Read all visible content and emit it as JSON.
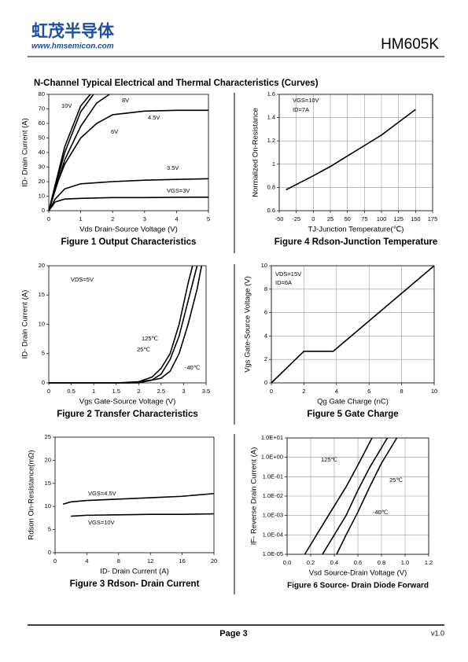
{
  "header": {
    "logo": "虹茂半导体",
    "website": "www.hmsemicon.com",
    "part_number": "HM605K"
  },
  "section_title": "N-Channel Typical Electrical and Thermal Characteristics (Curves)",
  "chart_data": [
    {
      "type": "line",
      "title": "Figure 1 Output Characteristics",
      "xlabel": "Vds Drain-Source Voltage (V)",
      "ylabel": "ID- Drain Current (A)",
      "xlim": [
        0,
        5
      ],
      "ylim": [
        0,
        80
      ],
      "xticks": [
        0,
        1,
        2,
        3,
        4,
        5
      ],
      "yticks": [
        0,
        10,
        20,
        30,
        40,
        50,
        60,
        70,
        80
      ],
      "grid": false,
      "series": [
        {
          "name": "10V",
          "color": "#000000",
          "x": [
            0,
            0.5,
            1,
            1.3
          ],
          "values": [
            0,
            44,
            72,
            80
          ]
        },
        {
          "name": "8V",
          "color": "#000000",
          "x": [
            0,
            0.5,
            1,
            1.4
          ],
          "values": [
            0,
            40,
            68,
            80
          ]
        },
        {
          "name": "6V",
          "color": "#000000",
          "x": [
            0,
            0.5,
            1,
            1.5,
            1.9
          ],
          "values": [
            0,
            35,
            58,
            74,
            80
          ]
        },
        {
          "name": "4.5V",
          "color": "#000000",
          "x": [
            0,
            0.25,
            0.5,
            1,
            1.5,
            2,
            3,
            4,
            5
          ],
          "values": [
            0,
            18,
            32,
            50,
            60,
            66,
            68.5,
            69,
            69
          ]
        },
        {
          "name": "3.5V",
          "color": "#000000",
          "x": [
            0,
            0.2,
            0.5,
            1,
            2,
            3,
            4,
            5
          ],
          "values": [
            0,
            8,
            15,
            18.5,
            20,
            21,
            21.5,
            22
          ]
        },
        {
          "name": "VGS=3V",
          "color": "#000000",
          "x": [
            0,
            0.2,
            0.5,
            1,
            2,
            3,
            4,
            5
          ],
          "values": [
            0,
            6,
            8,
            8.5,
            9,
            9,
            9.2,
            9.3
          ]
        }
      ]
    },
    {
      "type": "line",
      "title": "Figure 4 Rdson-Junction Temperature",
      "xlabel": "TJ-Junction Temperature(℃)",
      "ylabel": "Normalized On-Resistance",
      "xlim": [
        -50,
        175
      ],
      "ylim": [
        0.6,
        1.6
      ],
      "xticks": [
        -50,
        -25,
        0,
        25,
        50,
        75,
        100,
        125,
        150,
        175
      ],
      "yticks": [
        0.6,
        0.8,
        1,
        1.2,
        1.4,
        1.6
      ],
      "grid": true,
      "annotations": [
        "VGS=10V",
        "ID=7A"
      ],
      "series": [
        {
          "color": "#000000",
          "x": [
            -40,
            0,
            25,
            50,
            75,
            100,
            125,
            150
          ],
          "values": [
            0.78,
            0.9,
            0.98,
            1.07,
            1.16,
            1.25,
            1.36,
            1.47
          ]
        }
      ]
    },
    {
      "type": "line",
      "title": "Figure 2 Transfer Characteristics",
      "xlabel": "Vgs Gate-Source Voltage (V)",
      "ylabel": "ID- Drain Current (A)",
      "xlim": [
        0,
        3.5
      ],
      "ylim": [
        0,
        20
      ],
      "xticks": [
        0,
        0.5,
        1,
        1.5,
        2,
        2.5,
        3,
        3.5
      ],
      "yticks": [
        0,
        5,
        10,
        15,
        20
      ],
      "grid": false,
      "annotations": [
        "VDS=5V"
      ],
      "series": [
        {
          "name": "125℃",
          "color": "#000000",
          "x": [
            0,
            1.5,
            2,
            2.3,
            2.5,
            2.7,
            2.9,
            3.1,
            3.2
          ],
          "values": [
            0,
            0,
            0.2,
            1,
            2.5,
            5,
            10,
            17,
            20
          ]
        },
        {
          "name": "25℃",
          "color": "#000000",
          "x": [
            0,
            1.8,
            2.3,
            2.5,
            2.7,
            2.9,
            3.1,
            3.3
          ],
          "values": [
            0,
            0,
            0.5,
            1.5,
            4,
            8,
            14,
            20
          ]
        },
        {
          "name": "-40℃",
          "color": "#000000",
          "x": [
            0,
            2,
            2.5,
            2.7,
            2.9,
            3.1,
            3.3,
            3.4
          ],
          "values": [
            0,
            0,
            0.8,
            2,
            5,
            10,
            16,
            20
          ]
        }
      ]
    },
    {
      "type": "line",
      "title": "Figure 5 Gate Charge",
      "xlabel": "Qg Gate Charge (nC)",
      "ylabel": "Vgs Gate-Source Voltage (V)",
      "xlim": [
        0,
        10
      ],
      "ylim": [
        0,
        10
      ],
      "xticks": [
        0,
        2,
        4,
        6,
        8,
        10
      ],
      "yticks": [
        0,
        2,
        4,
        6,
        8,
        10
      ],
      "grid": true,
      "annotations": [
        "VDS=15V",
        "ID=6A"
      ],
      "series": [
        {
          "color": "#000000",
          "x": [
            0,
            2,
            3.8,
            10
          ],
          "values": [
            0,
            2.7,
            2.7,
            10
          ]
        }
      ]
    },
    {
      "type": "line",
      "title": "Figure 3 Rdson- Drain Current",
      "xlabel": "ID- Drain Current (A)",
      "ylabel": "Rdson On-Resistance(mΩ)",
      "xlim": [
        0,
        20
      ],
      "ylim": [
        0,
        25
      ],
      "xticks": [
        0,
        4,
        8,
        12,
        16,
        20
      ],
      "yticks": [
        0,
        5,
        10,
        15,
        20,
        25
      ],
      "grid": false,
      "series": [
        {
          "name": "VGS=4.5V",
          "color": "#000000",
          "x": [
            1,
            2,
            4,
            8,
            12,
            16,
            20
          ],
          "values": [
            10.5,
            11,
            11.3,
            11.6,
            11.9,
            12.2,
            12.8
          ]
        },
        {
          "name": "VGS=10V",
          "color": "#000000",
          "x": [
            2,
            4,
            8,
            12,
            16,
            20
          ],
          "values": [
            7.9,
            8.1,
            8.2,
            8.3,
            8.3,
            8.4
          ]
        }
      ]
    },
    {
      "type": "line",
      "title": "Figure 6 Source- Drain Diode Forward",
      "xlabel": "Vsd Source-Drain Voltage (V)",
      "ylabel": "IF- Reverse Drain Current (A)",
      "xlim": [
        0,
        1.2
      ],
      "ylim": [
        1e-05,
        10
      ],
      "log_y": true,
      "grid": true,
      "xticks": [
        {
          "value": 0,
          "label": "0.0"
        },
        0.2,
        0.4,
        0.6,
        0.8,
        {
          "value": 1,
          "label": "1.0"
        },
        1.2
      ],
      "yticks": [
        {
          "value": 1e-05,
          "label": "1.0E-05"
        },
        {
          "value": 0.0001,
          "label": "1.0E-04"
        },
        {
          "value": 0.001,
          "label": "1.0E-03"
        },
        {
          "value": 0.01,
          "label": "1.0E-02"
        },
        {
          "value": 0.1,
          "label": "1.0E-01"
        },
        {
          "value": 1,
          "label": "1.0E+00"
        },
        {
          "value": 10,
          "label": "1.0E+01"
        }
      ],
      "series": [
        {
          "name": "125℃",
          "color": "#000000",
          "x": [
            0.15,
            0.25,
            0.35,
            0.5,
            0.6,
            0.72
          ],
          "values": [
            1e-05,
            0.0001,
            0.001,
            0.03,
            0.4,
            10
          ]
        },
        {
          "name": "25℃",
          "color": "#000000",
          "x": [
            0.3,
            0.4,
            0.5,
            0.6,
            0.7,
            0.85
          ],
          "values": [
            1e-05,
            0.0001,
            0.001,
            0.02,
            0.3,
            10
          ]
        },
        {
          "name": "-40℃",
          "color": "#000000",
          "x": [
            0.42,
            0.5,
            0.6,
            0.7,
            0.8,
            0.93
          ],
          "values": [
            1e-05,
            0.0001,
            0.0015,
            0.03,
            0.5,
            10
          ]
        }
      ]
    }
  ],
  "footer": {
    "page": "Page 3",
    "version": "v1.0"
  }
}
